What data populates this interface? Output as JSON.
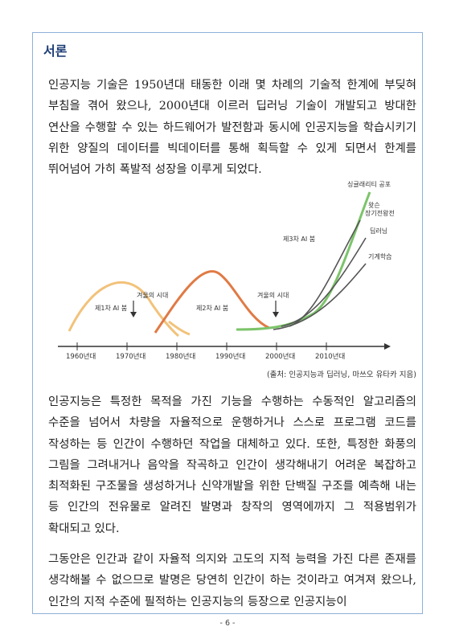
{
  "section": {
    "heading": "서론"
  },
  "paragraphs": [
    "인공지능 기술은 1950년대 태동한 이래 몇 차례의 기술적 한계에 부딪혀 부침을 겪어 왔으나, 2000년대 이르러 딥러닝 기술이 개발되고 방대한 연산을 수행할 수 있는 하드웨어가 발전함과 동시에 인공지능을 학습시키기 위한 양질의 데이터를 빅데이터를 통해 획득할 수 있게 되면서 한계를 뛰어넘어 가히 폭발적 성장을 이루게 되었다.",
    "인공지능은 특정한 목적을 가진 기능을 수행하는 수동적인 알고리즘의 수준을 넘어서 차량을 자율적으로 운행하거나 스스로 프로그램 코드를 작성하는 등 인간이 수행하던 작업을 대체하고 있다. 또한, 특정한 화풍의 그림을 그려내거나 음악을 작곡하고 인간이 생각해내기 어려운 복잡하고 최적화된 구조물을 생성하거나 신약개발을 위한 단백질 구조를 예측해 내는 등 인간의 전유물로 알려진 발명과 창작의 영역에까지 그 적용범위가 확대되고 있다.",
    "그동안은 인간과 같이 자율적 의지와 고도의 지적 능력을 가진 다른 존재를 생각해볼 수 없으므로 발명은 당연히 인간이 하는 것이라고 여겨져 왔으나, 인간의 지적 수준에 필적하는 인공지능의 등장으로 인공지능이"
  ],
  "figure": {
    "labels": {
      "boom1": "제1차 AI 붐",
      "boom2": "제2차 AI 붐",
      "boom3": "제3차 AI 붐",
      "winter1": "겨울의 시대",
      "winter2": "겨울의 시대",
      "singularity": "싱귤래리티 공포",
      "go": "왓슨",
      "go2": "장기전왕전",
      "deeplearning": "딥러닝",
      "ml": "기계학습"
    },
    "axis_ticks": [
      "1960년대",
      "1970년대",
      "1980년대",
      "1990년대",
      "2000년대",
      "2010년대"
    ],
    "colors": {
      "boom1": "#f2c27a",
      "boom2": "#e07a45",
      "boom3": "#7cc46a",
      "branch": "#555555",
      "axis": "#333333"
    }
  },
  "caption": "(출처: 인공지능과 딥러닝, 마쓰오 유타카 지음)",
  "page_number": "- 6 -"
}
